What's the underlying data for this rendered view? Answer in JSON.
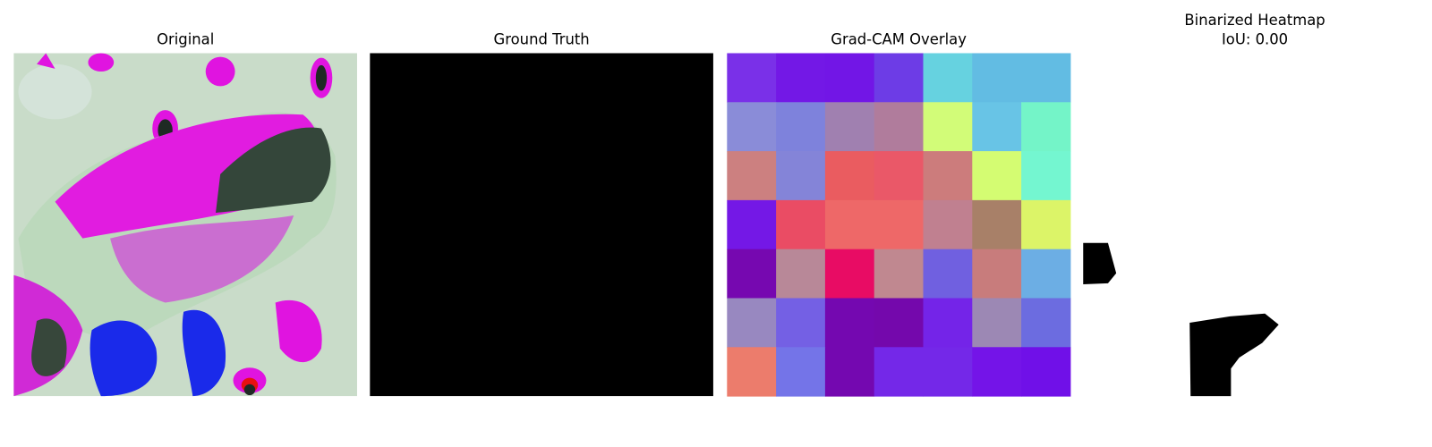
{
  "panels": [
    {
      "title": "Original"
    },
    {
      "title": "Ground Truth"
    },
    {
      "title": "Grad-CAM Overlay"
    },
    {
      "title": "Binarized Heatmap",
      "subtitle": "IoU: 0.00"
    }
  ]
}
